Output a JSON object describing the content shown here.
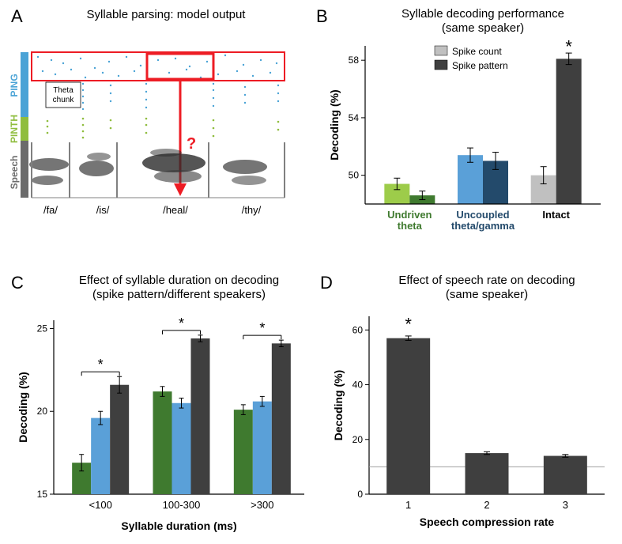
{
  "panelA": {
    "letter": "A",
    "title": "Syllable parsing: model output",
    "y_labels": [
      {
        "text": "PING",
        "color": "#4aa3d6"
      },
      {
        "text": "PINTH",
        "color": "#8fbd3e"
      },
      {
        "text": "Speech",
        "color": "#6b6b6b"
      }
    ],
    "theta_chunk_label": "Theta\nchunk",
    "question_mark": "?",
    "syllables": [
      "/fa/",
      "/is/",
      "/heal/",
      "/thy/"
    ],
    "colors": {
      "ping": "#4aa3d6",
      "pinth": "#8fbd3e",
      "speech_bar": "#6b6b6b",
      "red_box": "#ed1c24",
      "red_arrow": "#ed1c24",
      "divider": "#808080"
    }
  },
  "panelB": {
    "letter": "B",
    "title": "Syllable decoding performance\n(same speaker)",
    "legend": [
      {
        "label": "Spike count",
        "color": "#c0c0c0"
      },
      {
        "label": "Spike pattern",
        "color": "#3f3f3f"
      }
    ],
    "ylabel": "Decoding (%)",
    "ylim": [
      48,
      59
    ],
    "yticks": [
      50,
      54,
      58
    ],
    "categories": [
      {
        "name": "Undriven\ntheta",
        "label_color": "#3f7a2f"
      },
      {
        "name": "Uncoupled\ntheta/gamma",
        "label_color": "#234a6b"
      },
      {
        "name": "Intact",
        "label_color": "#000000"
      }
    ],
    "bars": [
      {
        "group": 0,
        "pos": 0,
        "value": 49.4,
        "err": 0.4,
        "color": "#9dcc4a"
      },
      {
        "group": 0,
        "pos": 1,
        "value": 48.6,
        "err": 0.3,
        "color": "#3f7a2f"
      },
      {
        "group": 1,
        "pos": 0,
        "value": 51.4,
        "err": 0.5,
        "color": "#5aa0d8"
      },
      {
        "group": 1,
        "pos": 1,
        "value": 51.0,
        "err": 0.6,
        "color": "#234a6b"
      },
      {
        "group": 2,
        "pos": 0,
        "value": 50.0,
        "err": 0.6,
        "color": "#c0c0c0"
      },
      {
        "group": 2,
        "pos": 1,
        "value": 58.1,
        "err": 0.4,
        "color": "#3f3f3f"
      }
    ],
    "significance": {
      "group": 2,
      "symbol": "*"
    }
  },
  "panelC": {
    "letter": "C",
    "title": "Effect of syllable duration on decoding\n(spike pattern/different speakers)",
    "ylabel": "Decoding (%)",
    "xlabel": "Syllable duration (ms)",
    "ylim": [
      15,
      25.5
    ],
    "yticks": [
      15,
      20,
      25
    ],
    "categories": [
      "<100",
      "100-300",
      ">300"
    ],
    "colors": {
      "undriven": "#3f7a2f",
      "uncoupled": "#5aa0d8",
      "intact": "#3f3f3f"
    },
    "bars": [
      {
        "group": 0,
        "series": "undriven",
        "value": 16.9,
        "err": 0.5
      },
      {
        "group": 0,
        "series": "uncoupled",
        "value": 19.6,
        "err": 0.4
      },
      {
        "group": 0,
        "series": "intact",
        "value": 21.6,
        "err": 0.5
      },
      {
        "group": 1,
        "series": "undriven",
        "value": 21.2,
        "err": 0.3
      },
      {
        "group": 1,
        "series": "uncoupled",
        "value": 20.5,
        "err": 0.3
      },
      {
        "group": 1,
        "series": "intact",
        "value": 24.4,
        "err": 0.2
      },
      {
        "group": 2,
        "series": "undriven",
        "value": 20.1,
        "err": 0.3
      },
      {
        "group": 2,
        "series": "uncoupled",
        "value": 20.6,
        "err": 0.3
      },
      {
        "group": 2,
        "series": "intact",
        "value": 24.1,
        "err": 0.2
      }
    ],
    "significance": [
      {
        "group": 0,
        "symbol": "*"
      },
      {
        "group": 1,
        "symbol": "*"
      },
      {
        "group": 2,
        "symbol": "*"
      }
    ]
  },
  "panelD": {
    "letter": "D",
    "title": "Effect of speech rate on decoding\n(same speaker)",
    "ylabel": "Decoding (%)",
    "xlabel": "Speech compression rate",
    "ylim": [
      0,
      65
    ],
    "yticks": [
      0,
      20,
      40,
      60
    ],
    "categories": [
      "1",
      "2",
      "3"
    ],
    "bars": [
      {
        "value": 57,
        "err": 0.8,
        "color": "#3f3f3f"
      },
      {
        "value": 15,
        "err": 0.5,
        "color": "#3f3f3f"
      },
      {
        "value": 14,
        "err": 0.5,
        "color": "#3f3f3f"
      }
    ],
    "reference_line": 10,
    "reference_color": "#a0a0a0",
    "significance": {
      "index": 0,
      "symbol": "*"
    }
  }
}
